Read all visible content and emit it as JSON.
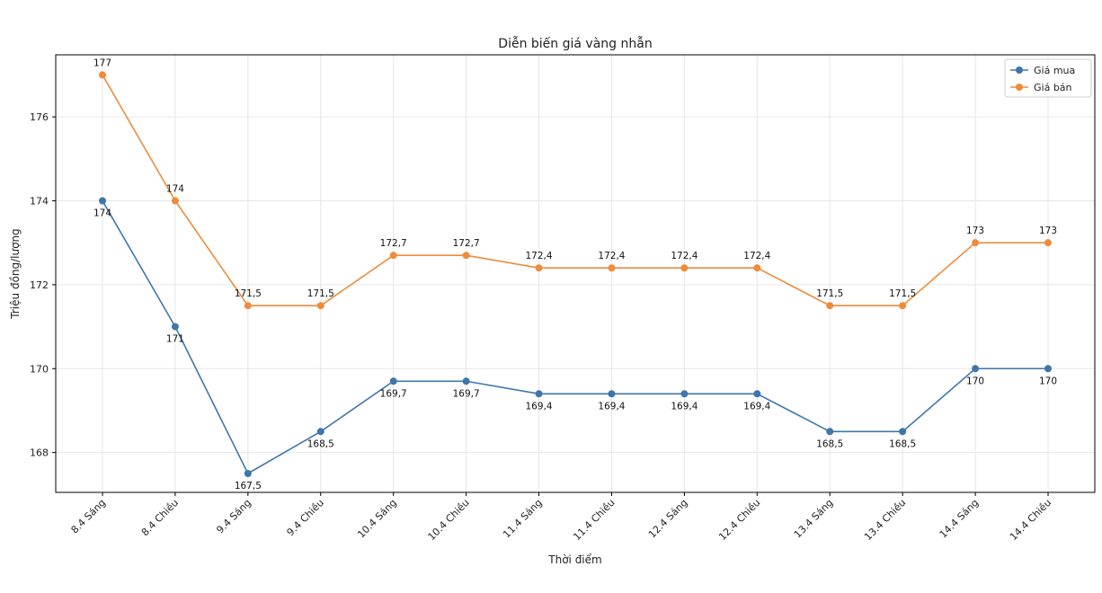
{
  "chart_data": {
    "type": "line",
    "title": "Diễn biến giá vàng nhẫn",
    "xlabel": "Thời điểm",
    "ylabel": "Triệu đồng/lượng",
    "categories": [
      "8.4 Sáng",
      "8.4 Chiều",
      "9.4 Sáng",
      "9.4 Chiều",
      "10.4 Sáng",
      "10.4 Chiều",
      "11.4 Sáng",
      "11.4 Chiều",
      "12.4 Sáng",
      "12.4 Chiều",
      "13.4 Sáng",
      "13.4 Chiều",
      "14.4 Sáng",
      "14.4 Chiều"
    ],
    "series": [
      {
        "name": "Giá mua",
        "color": "#3e76ab",
        "values": [
          174,
          171,
          167.5,
          168.5,
          169.7,
          169.7,
          169.4,
          169.4,
          169.4,
          169.4,
          168.5,
          168.5,
          170,
          170
        ],
        "labels": [
          "174",
          "171",
          "167,5",
          "168,5",
          "169,7",
          "169,7",
          "169,4",
          "169,4",
          "169,4",
          "169,4",
          "168,5",
          "168,5",
          "170",
          "170"
        ],
        "label_position": "below"
      },
      {
        "name": "Giá bán",
        "color": "#ef8b3a",
        "values": [
          177,
          174,
          171.5,
          171.5,
          172.7,
          172.7,
          172.4,
          172.4,
          172.4,
          172.4,
          171.5,
          171.5,
          173,
          173
        ],
        "labels": [
          "177",
          "174",
          "171,5",
          "171,5",
          "172,7",
          "172,7",
          "172,4",
          "172,4",
          "172,4",
          "172,4",
          "171,5",
          "171,5",
          "173",
          "173"
        ],
        "label_position": "above"
      }
    ],
    "yticks": [
      168,
      170,
      172,
      174,
      176
    ],
    "ylim": [
      167.05,
      177.48
    ],
    "grid": true,
    "legend": "top-right"
  }
}
